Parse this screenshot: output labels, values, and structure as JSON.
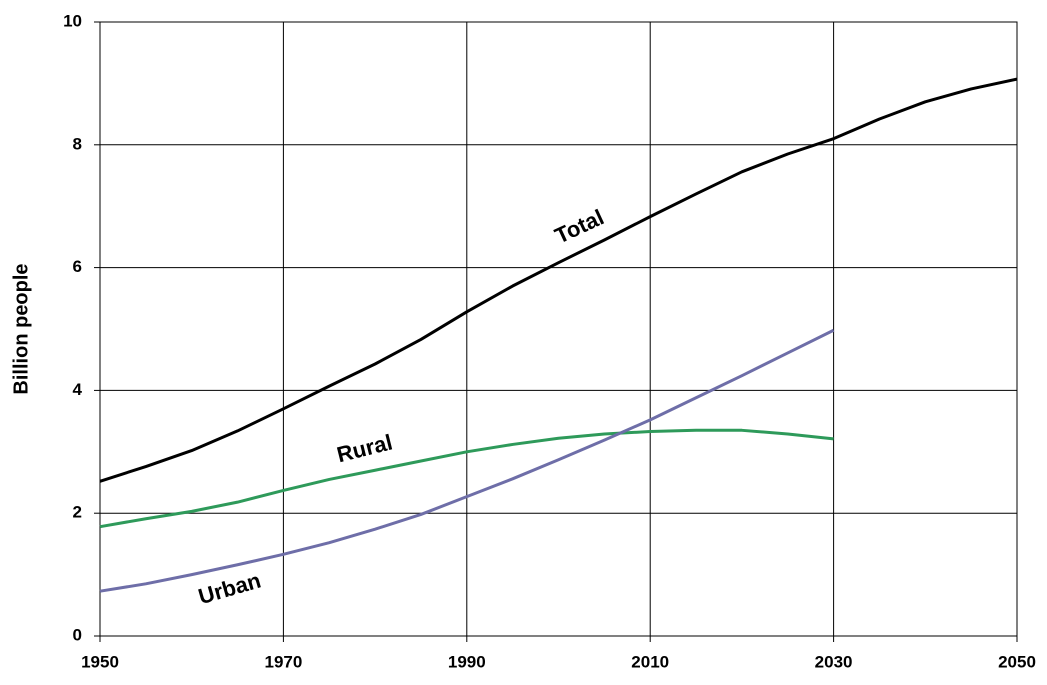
{
  "chart_data": {
    "type": "line",
    "ylabel": "Billion people",
    "x": [
      1950,
      1955,
      1960,
      1965,
      1970,
      1975,
      1980,
      1985,
      1990,
      1995,
      2000,
      2005,
      2010,
      2015,
      2020,
      2025,
      2030,
      2035,
      2040,
      2045,
      2050
    ],
    "series": [
      {
        "name": "Total",
        "color": "#000000",
        "values": [
          2.52,
          2.76,
          3.02,
          3.34,
          3.7,
          4.07,
          4.43,
          4.83,
          5.28,
          5.7,
          6.08,
          6.45,
          6.83,
          7.2,
          7.56,
          7.85,
          8.1,
          8.42,
          8.7,
          8.91,
          9.07
        ]
      },
      {
        "name": "Rural",
        "color": "#2e9a5a",
        "values": [
          1.78,
          1.91,
          2.03,
          2.18,
          2.37,
          2.55,
          2.7,
          2.85,
          3.0,
          3.12,
          3.22,
          3.29,
          3.33,
          3.35,
          3.35,
          3.29,
          3.21,
          null,
          null,
          null,
          null
        ]
      },
      {
        "name": "Urban",
        "color": "#6e6ea8",
        "values": [
          0.73,
          0.85,
          1.0,
          1.16,
          1.33,
          1.52,
          1.74,
          1.98,
          2.27,
          2.56,
          2.87,
          3.19,
          3.52,
          3.88,
          4.24,
          4.61,
          4.98,
          null,
          null,
          null,
          null
        ]
      }
    ],
    "xlim": [
      1950,
      2050
    ],
    "xticks": [
      1950,
      1970,
      1990,
      2010,
      2030,
      2050
    ],
    "ylim": [
      0,
      10
    ],
    "yticks": [
      0,
      2,
      4,
      6,
      8,
      10
    ],
    "grid": true
  }
}
